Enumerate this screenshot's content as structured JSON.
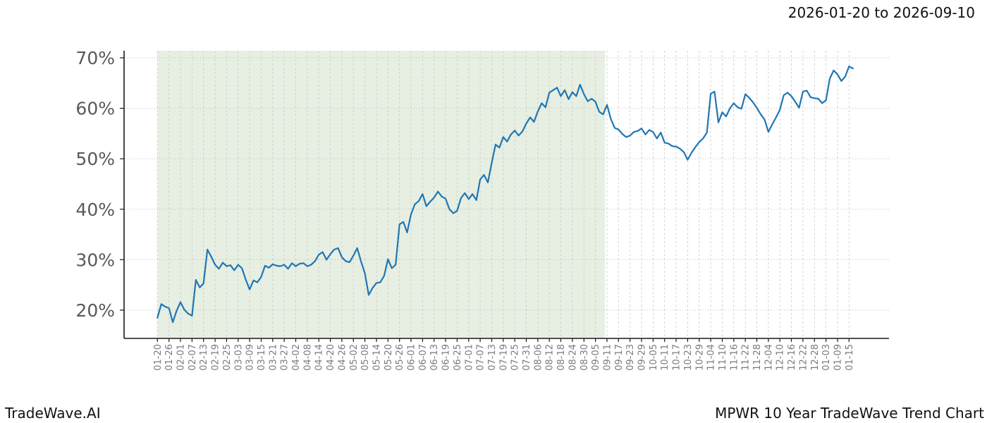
{
  "header": {
    "title": "2026-01-20 to 2026-09-10"
  },
  "footer": {
    "left_text": "TradeWave.AI",
    "right_text": "MPWR 10 Year TradeWave Trend Chart"
  },
  "chart_data": {
    "type": "line",
    "title": "2026-01-20 to 2026-09-10",
    "xlabel": "",
    "ylabel": "",
    "grid": true,
    "legend": "none",
    "x_start": "2026-01-20",
    "x_point_interval_days": 2,
    "x_tick_index_step": 3,
    "x_tick_labels": [
      "01-20",
      "01-26",
      "02-01",
      "02-07",
      "02-13",
      "02-19",
      "02-25",
      "03-03",
      "03-09",
      "03-15",
      "03-21",
      "03-27",
      "04-02",
      "04-08",
      "04-14",
      "04-20",
      "04-26",
      "05-02",
      "05-08",
      "05-14",
      "05-20",
      "05-26",
      "06-01",
      "06-07",
      "06-13",
      "06-19",
      "06-25",
      "07-01",
      "07-07",
      "07-13",
      "07-19",
      "07-25",
      "07-31",
      "08-06",
      "08-12",
      "08-18",
      "08-24",
      "08-30",
      "09-05",
      "09-11",
      "09-17",
      "09-23",
      "09-29",
      "10-05",
      "10-11",
      "10-17",
      "10-23",
      "10-29",
      "11-04",
      "11-10",
      "11-16",
      "11-22",
      "11-28",
      "12-04",
      "12-10",
      "12-16",
      "12-22",
      "12-28",
      "01-03",
      "01-09",
      "01-15"
    ],
    "y_tick_values": [
      20,
      30,
      40,
      50,
      60,
      70
    ],
    "y_tick_labels": [
      "20%",
      "30%",
      "40%",
      "50%",
      "60%",
      "70%"
    ],
    "ylim": [
      14.4,
      71.4
    ],
    "shaded_region": {
      "label": "highlighted window 2026-01-20 to 2026-09-10",
      "start_index": 0,
      "end_index": 116.5,
      "color": "#e7efe2"
    },
    "line_color": "#1f77b4",
    "series": [
      {
        "name": "MPWR trend (%)",
        "color": "#1f77b4",
        "values": [
          18.5,
          21.2,
          20.7,
          20.4,
          17.6,
          19.9,
          21.6,
          20.1,
          19.3,
          18.9,
          26.0,
          24.5,
          25.3,
          32.0,
          30.6,
          29.0,
          28.2,
          29.4,
          28.7,
          28.9,
          27.9,
          29.0,
          28.3,
          26.0,
          24.1,
          25.9,
          25.5,
          26.6,
          28.8,
          28.4,
          29.1,
          28.8,
          28.7,
          29.0,
          28.2,
          29.3,
          28.7,
          29.2,
          29.3,
          28.7,
          29.0,
          29.7,
          31.0,
          31.5,
          30.0,
          31.1,
          32.0,
          32.3,
          30.5,
          29.7,
          29.5,
          30.8,
          32.3,
          29.6,
          27.3,
          23.0,
          24.4,
          25.4,
          25.5,
          26.8,
          30.1,
          28.3,
          29.0,
          37.0,
          37.5,
          35.4,
          39.0,
          41.0,
          41.6,
          43.0,
          40.6,
          41.5,
          42.3,
          43.5,
          42.5,
          42.1,
          40.0,
          39.2,
          39.7,
          42.2,
          43.2,
          42.0,
          43.0,
          41.8,
          45.9,
          46.8,
          45.3,
          49.2,
          52.8,
          52.2,
          54.3,
          53.4,
          54.8,
          55.6,
          54.6,
          55.4,
          57.0,
          58.2,
          57.3,
          59.4,
          61.0,
          60.2,
          63.1,
          63.6,
          64.1,
          62.4,
          63.6,
          61.8,
          63.2,
          62.4,
          64.7,
          62.8,
          61.4,
          61.9,
          61.3,
          59.3,
          58.8,
          60.7,
          57.9,
          56.1,
          55.8,
          54.9,
          54.3,
          54.6,
          55.3,
          55.5,
          56.0,
          54.8,
          55.7,
          55.3,
          54.0,
          55.2,
          53.2,
          53.0,
          52.5,
          52.4,
          52.0,
          51.3,
          49.8,
          51.2,
          52.3,
          53.3,
          54.0,
          55.2,
          62.9,
          63.3,
          57.2,
          59.2,
          58.4,
          60.0,
          61.0,
          60.2,
          59.9,
          62.8,
          62.1,
          61.2,
          60.1,
          58.8,
          57.8,
          55.3,
          56.8,
          58.2,
          59.7,
          62.6,
          63.1,
          62.4,
          61.3,
          60.1,
          63.3,
          63.5,
          62.2,
          62.0,
          61.9,
          61.0,
          61.6,
          65.9,
          67.5,
          66.7,
          65.4,
          66.3,
          68.3,
          67.9
        ]
      }
    ]
  }
}
